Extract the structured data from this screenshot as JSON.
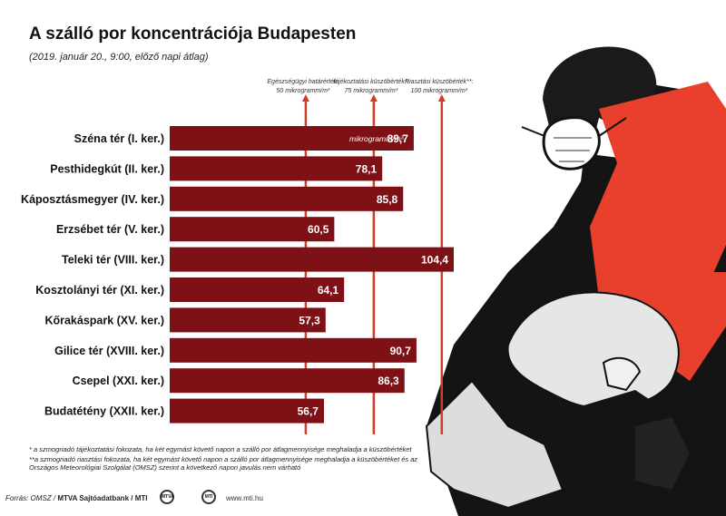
{
  "title": "A szálló por koncentrációja Budapesten",
  "subtitle": "(2019. január 20., 9:00, előző napi átlag)",
  "chart_data": {
    "type": "bar",
    "orientation": "horizontal",
    "categories": [
      "Széna tér (I. ker.)",
      "Pesthidegkút (II. ker.)",
      "Káposztásmegyer (IV. ker.)",
      "Erzsébet tér (V. ker.)",
      "Teleki tér (VIII. ker.)",
      "Kosztolányi tér (XI. ker.)",
      "Kőrakáspark (XV. ker.)",
      "Gilice tér (XVIII. ker.)",
      "Csepel (XXI. ker.)",
      "Budatétény (XXII. ker.)"
    ],
    "values": [
      89.7,
      78.1,
      85.8,
      60.5,
      104.4,
      64.1,
      57.3,
      90.7,
      86.3,
      56.7
    ],
    "value_labels": [
      "89,7",
      "78,1",
      "85,8",
      "60,5",
      "104,4",
      "64,1",
      "57,3",
      "90,7",
      "86,3",
      "56,7"
    ],
    "unit_label": "mikrogramm/m³",
    "bar_color": "#7d1116",
    "threshold_color": "#d23d2a",
    "thresholds": [
      {
        "value": 50,
        "name": "Egészségügyi határérték:",
        "label": "50 mikrogramm/m³"
      },
      {
        "value": 75,
        "name": "tájékoztatási küszöbérték*:",
        "label": "75 mikrogramm/m³"
      },
      {
        "value": 100,
        "name": "Riasztási küszöbérték**:",
        "label": "100 mikrogramm/m³"
      }
    ]
  },
  "footnotes": [
    "* a szmogriadó tájékoztatási fokozata, ha két egymást követő napon a szálló por átlagmennyisége meghaladja a küszöbértéket",
    "**a szmogriadó riasztási fokozata, ha két egymást követő napon a szálló por átlagmennyisége meghaladja a küszöbértéket és az Országos Meteorológiai Szolgálat (OMSZ) szerint a következő napon javulás nem várható"
  ],
  "footer": {
    "source": "Forrás: OMSZ / ",
    "credit": "MTVA Sajtóadatbank / MTI",
    "logo1": "MTVA",
    "logo2": "MTI",
    "website": "www.mti.hu"
  }
}
